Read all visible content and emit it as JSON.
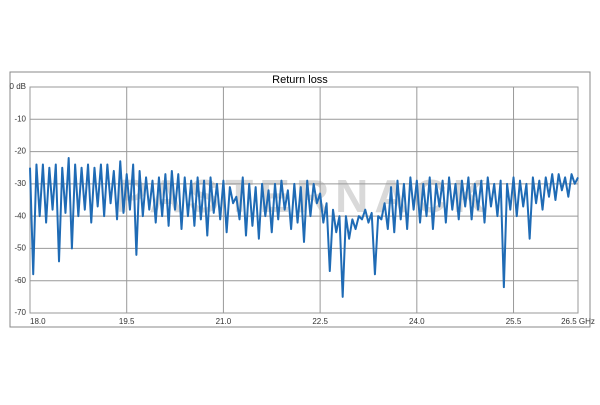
{
  "chart_data": {
    "type": "line",
    "title": "Return loss",
    "watermark": "PASTERNACK",
    "color": "#1f6bb5",
    "grid": true,
    "xlim": [
      18,
      26.5
    ],
    "xticks": [
      {
        "value": 18,
        "label": "18.0"
      },
      19.5,
      {
        "value": 21,
        "label": "21.0"
      },
      22.5,
      {
        "value": 24,
        "label": "24.0"
      },
      25.5,
      {
        "value": 26.5,
        "label": "26.5 GHz"
      }
    ],
    "ylim": [
      -70,
      0
    ],
    "yticks": [
      {
        "value": 0,
        "label": "0 dB"
      },
      -10,
      -20,
      -30,
      -40,
      -50,
      -60,
      -70
    ],
    "x": [
      18,
      18.05,
      18.1,
      18.15,
      18.2,
      18.25,
      18.3,
      18.35,
      18.4,
      18.45,
      18.5,
      18.55,
      18.6,
      18.65,
      18.7,
      18.75,
      18.8,
      18.85,
      18.9,
      18.95,
      19,
      19.05,
      19.1,
      19.15,
      19.2,
      19.25,
      19.3,
      19.35,
      19.4,
      19.45,
      19.5,
      19.55,
      19.6,
      19.65,
      19.7,
      19.75,
      19.8,
      19.85,
      19.9,
      19.95,
      20,
      20.05,
      20.1,
      20.15,
      20.2,
      20.25,
      20.3,
      20.35,
      20.4,
      20.45,
      20.5,
      20.55,
      20.6,
      20.65,
      20.7,
      20.75,
      20.8,
      20.85,
      20.9,
      20.95,
      21,
      21.05,
      21.1,
      21.15,
      21.2,
      21.25,
      21.3,
      21.35,
      21.4,
      21.45,
      21.5,
      21.55,
      21.6,
      21.65,
      21.7,
      21.75,
      21.8,
      21.85,
      21.9,
      21.95,
      22,
      22.05,
      22.1,
      22.15,
      22.2,
      22.25,
      22.3,
      22.35,
      22.4,
      22.45,
      22.5,
      22.55,
      22.6,
      22.65,
      22.7,
      22.75,
      22.8,
      22.85,
      22.9,
      22.95,
      23,
      23.05,
      23.1,
      23.15,
      23.2,
      23.25,
      23.3,
      23.35,
      23.4,
      23.45,
      23.5,
      23.55,
      23.6,
      23.65,
      23.7,
      23.75,
      23.8,
      23.85,
      23.9,
      23.95,
      24,
      24.05,
      24.1,
      24.15,
      24.2,
      24.25,
      24.3,
      24.35,
      24.4,
      24.45,
      24.5,
      24.55,
      24.6,
      24.65,
      24.7,
      24.75,
      24.8,
      24.85,
      24.9,
      24.95,
      25,
      25.05,
      25.1,
      25.15,
      25.2,
      25.25,
      25.3,
      25.35,
      25.4,
      25.45,
      25.5,
      25.55,
      25.6,
      25.65,
      25.7,
      25.75,
      25.8,
      25.85,
      25.9,
      25.95,
      26,
      26.05,
      26.1,
      26.15,
      26.2,
      26.25,
      26.3,
      26.35,
      26.4,
      26.45,
      26.5
    ],
    "values": [
      -25,
      -58,
      -24,
      -40,
      -24,
      -42,
      -25,
      -38,
      -24,
      -54,
      -25,
      -39,
      -22,
      -50,
      -24,
      -40,
      -25,
      -38,
      -24,
      -42,
      -25,
      -37,
      -24,
      -40,
      -24,
      -36,
      -26,
      -41,
      -23,
      -39,
      -27,
      -38,
      -24,
      -52,
      -26,
      -40,
      -28,
      -38,
      -29,
      -42,
      -28,
      -40,
      -27,
      -43,
      -26,
      -38,
      -27,
      -44,
      -28,
      -40,
      -29,
      -43,
      -28,
      -41,
      -29,
      -46,
      -28,
      -39,
      -30,
      -41,
      -29,
      -45,
      -31,
      -36,
      -34,
      -41,
      -28,
      -46,
      -30,
      -43,
      -31,
      -47,
      -30,
      -40,
      -32,
      -45,
      -30,
      -41,
      -29,
      -38,
      -32,
      -44,
      -30,
      -42,
      -31,
      -48,
      -29,
      -40,
      -30,
      -36,
      -33,
      -42,
      -36,
      -57,
      -38,
      -45,
      -40,
      -65,
      -40,
      -47,
      -41,
      -44,
      -40,
      -41,
      -38,
      -42,
      -39,
      -58,
      -40,
      -41,
      -36,
      -44,
      -31,
      -45,
      -29,
      -41,
      -30,
      -44,
      -28,
      -38,
      -29,
      -42,
      -30,
      -40,
      -28,
      -44,
      -30,
      -37,
      -29,
      -42,
      -28,
      -38,
      -30,
      -41,
      -29,
      -37,
      -28,
      -41,
      -30,
      -38,
      -29,
      -42,
      -28,
      -37,
      -30,
      -40,
      -29,
      -62,
      -30,
      -38,
      -28,
      -40,
      -29,
      -37,
      -30,
      -47,
      -28,
      -36,
      -29,
      -38,
      -28,
      -34,
      -27,
      -35,
      -27,
      -32,
      -28,
      -34,
      -27,
      -30,
      -28
    ]
  }
}
